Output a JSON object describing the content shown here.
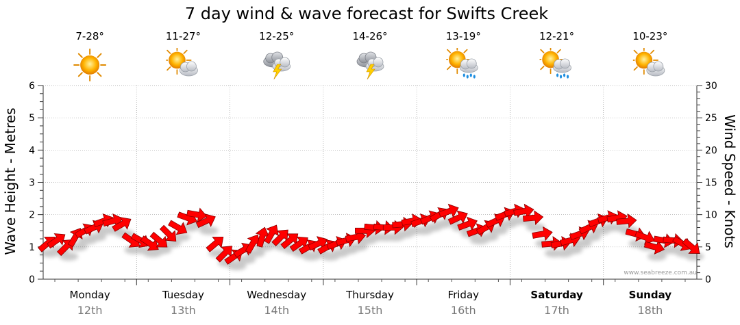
{
  "title": "7 day wind & wave forecast for Swifts Creek",
  "watermark": "www.seabreeze.com.au",
  "colors": {
    "arrow": "#ff0000",
    "arrow_stroke": "#8a0000",
    "grid": "#a0a0a0",
    "date": "#777777"
  },
  "days": [
    {
      "day": "Monday",
      "date": "12th",
      "temp": "7-28°",
      "icon": "sun-icon",
      "bold": false
    },
    {
      "day": "Tuesday",
      "date": "13th",
      "temp": "11-27°",
      "icon": "partly-cloudy-icon",
      "bold": false
    },
    {
      "day": "Wednesday",
      "date": "14th",
      "temp": "12-25°",
      "icon": "thunderstorm-icon",
      "bold": false
    },
    {
      "day": "Thursday",
      "date": "15th",
      "temp": "14-26°",
      "icon": "thunderstorm-icon",
      "bold": false
    },
    {
      "day": "Friday",
      "date": "16th",
      "temp": "13-19°",
      "icon": "sun-shower-icon",
      "bold": false
    },
    {
      "day": "Saturday",
      "date": "17th",
      "temp": "12-21°",
      "icon": "sun-shower-icon",
      "bold": true
    },
    {
      "day": "Sunday",
      "date": "18th",
      "temp": "10-23°",
      "icon": "partly-cloudy-icon",
      "bold": true
    }
  ],
  "chart_data": {
    "type": "line",
    "title": "7 day wind & wave forecast for Swifts Creek",
    "ylabel_left": "Wave Height - Metres",
    "ylabel_right": "Wind Speed - Knots",
    "ylim_left": [
      0,
      6
    ],
    "ylim_right": [
      0,
      30
    ],
    "left_ticks": [
      "0",
      "1",
      "2",
      "3",
      "4",
      "5",
      "6"
    ],
    "right_ticks": [
      "0",
      "5",
      "10",
      "15",
      "20",
      "25",
      "30"
    ],
    "x_unit": "day index (0 = Monday 12th)",
    "series": [
      {
        "name": "Wind (knots)",
        "marker": "direction-arrow",
        "x": [
          0.0,
          0.1,
          0.2,
          0.3,
          0.4,
          0.5,
          0.6,
          0.7,
          0.8,
          0.9,
          1.0,
          1.1,
          1.2,
          1.3,
          1.4,
          1.5,
          1.6,
          1.7,
          1.8,
          1.9,
          2.0,
          2.1,
          2.2,
          2.3,
          2.4,
          2.5,
          2.6,
          2.7,
          2.8,
          2.9,
          3.0,
          3.1,
          3.2,
          3.3,
          3.4,
          3.5,
          3.6,
          3.7,
          3.8,
          3.9,
          4.0,
          4.1,
          4.2,
          4.3,
          4.4,
          4.5,
          4.6,
          4.7,
          4.8,
          4.9,
          5.0,
          5.1,
          5.2,
          5.3,
          5.4,
          5.5,
          5.6,
          5.7,
          5.8,
          5.9,
          6.0,
          6.1,
          6.2,
          6.3,
          6.4,
          6.5,
          6.6,
          6.7,
          6.8,
          6.9
        ],
        "values": [
          5.5,
          6.0,
          5.0,
          6.5,
          7.5,
          8.0,
          9.0,
          9.0,
          8.5,
          6.0,
          6.0,
          5.5,
          6.0,
          7.0,
          8.0,
          9.5,
          10.0,
          9.0,
          5.5,
          4.0,
          3.5,
          4.5,
          5.5,
          6.5,
          7.0,
          6.5,
          6.0,
          5.5,
          5.0,
          5.5,
          5.0,
          5.5,
          6.0,
          6.5,
          7.5,
          8.0,
          8.0,
          8.0,
          8.5,
          9.0,
          9.0,
          9.5,
          10.0,
          10.5,
          9.5,
          8.5,
          7.5,
          8.0,
          9.0,
          10.0,
          10.5,
          10.5,
          9.5,
          7.0,
          5.5,
          5.5,
          6.0,
          7.0,
          8.0,
          9.0,
          9.5,
          9.5,
          9.0,
          7.0,
          6.5,
          5.0,
          6.0,
          6.0,
          5.5,
          5.0
        ],
        "direction_deg": [
          -40,
          -35,
          -45,
          -60,
          -30,
          -25,
          -20,
          -15,
          -30,
          35,
          30,
          35,
          40,
          45,
          30,
          20,
          10,
          -25,
          -40,
          -45,
          -35,
          -30,
          -60,
          -75,
          -60,
          -45,
          -40,
          -35,
          -30,
          -25,
          -30,
          -20,
          -15,
          -10,
          0,
          5,
          5,
          0,
          -5,
          -10,
          -20,
          -25,
          -30,
          -20,
          -25,
          -20,
          -20,
          -30,
          -25,
          -20,
          -15,
          -10,
          -5,
          -10,
          -5,
          -10,
          -15,
          -20,
          -25,
          -20,
          -15,
          -10,
          -5,
          15,
          20,
          15,
          10,
          5,
          30,
          40
        ]
      },
      {
        "name": "Wave Height (m)",
        "values": []
      }
    ]
  }
}
